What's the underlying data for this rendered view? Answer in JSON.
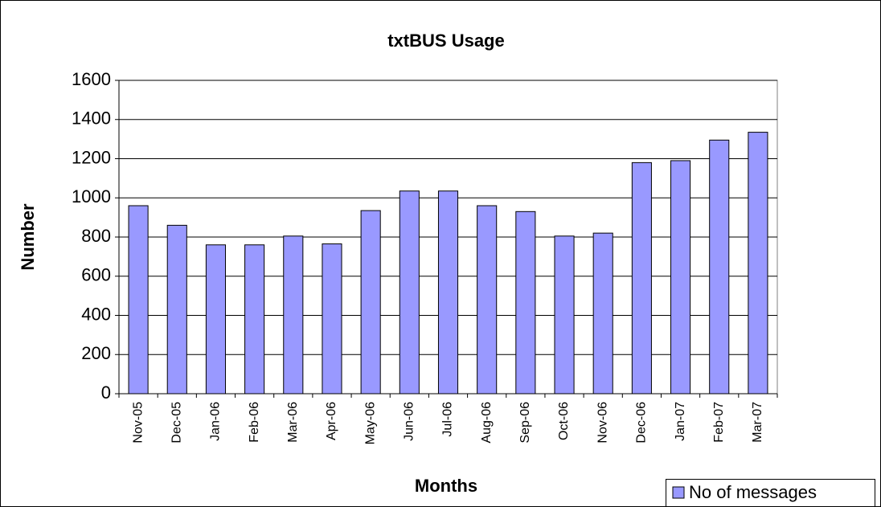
{
  "chart_data": {
    "type": "bar",
    "title": "txtBUS Usage",
    "x_label": "Months",
    "y_label": "Number",
    "categories": [
      "Nov-05",
      "Dec-05",
      "Jan-06",
      "Feb-06",
      "Mar-06",
      "Apr-06",
      "May-06",
      "Jun-06",
      "Jul-06",
      "Aug-06",
      "Sep-06",
      "Oct-06",
      "Nov-06",
      "Dec-06",
      "Jan-07",
      "Feb-07",
      "Mar-07"
    ],
    "series": [
      {
        "name": "No of messages",
        "color": "#9999ff",
        "values": [
          960,
          860,
          760,
          760,
          805,
          765,
          935,
          1035,
          1035,
          960,
          930,
          805,
          820,
          1180,
          1190,
          1295,
          1335
        ]
      }
    ],
    "ylim": [
      0,
      1600
    ],
    "yticks": [
      0,
      200,
      400,
      600,
      800,
      1000,
      1200,
      1400,
      1600
    ],
    "grid": true,
    "legend": "bottom-right"
  }
}
